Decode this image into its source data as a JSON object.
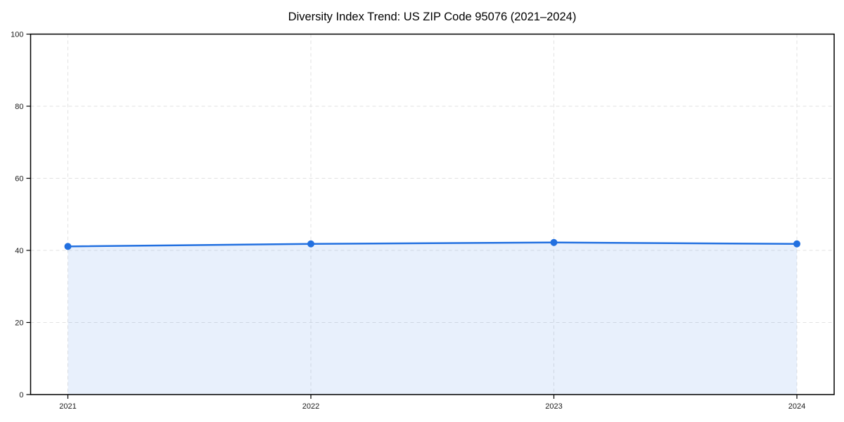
{
  "chart_data": {
    "type": "area",
    "title": "Diversity Index Trend: US ZIP Code 95076 (2021–2024)",
    "series_name": "Diversity Index",
    "x": [
      2021,
      2022,
      2023,
      2024
    ],
    "xtick_labels": [
      "2021",
      "2022",
      "2023",
      "2024"
    ],
    "values": [
      41.1,
      41.8,
      42.2,
      41.8
    ],
    "xlabel": "",
    "ylabel": "",
    "ylim": [
      0,
      100
    ],
    "yticks": [
      0,
      20,
      40,
      60,
      80,
      100
    ],
    "grid": true,
    "grid_style": "dashed",
    "legend": "none",
    "colors": {
      "line": "#2270e0",
      "marker": "#2270e0",
      "fill": "#2270e0",
      "fill_opacity": 0.1,
      "grid": "#e2e2e2",
      "spine": "#000000",
      "tick_label": "#1a1a1a",
      "title": "#000000",
      "background": "#ffffff"
    },
    "style": {
      "line_width": 2.5,
      "marker_radius": 5
    }
  }
}
